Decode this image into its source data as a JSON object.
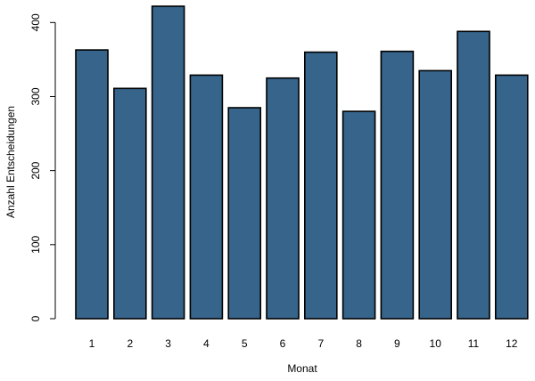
{
  "chart_data": {
    "type": "bar",
    "categories": [
      "1",
      "2",
      "3",
      "4",
      "5",
      "6",
      "7",
      "8",
      "9",
      "10",
      "11",
      "12"
    ],
    "values": [
      363,
      311,
      422,
      329,
      285,
      325,
      360,
      280,
      361,
      335,
      388,
      329
    ],
    "xlabel": "Monat",
    "ylabel": "Anzahl Entscheidungen",
    "ylim": [
      0,
      422
    ],
    "yticks": [
      0,
      100,
      200,
      300,
      400
    ],
    "grid": false,
    "bar_color": "#36648b",
    "edge_color": "#000000"
  }
}
